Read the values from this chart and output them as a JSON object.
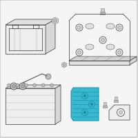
{
  "background_color": "#f5f5f5",
  "border_color": "#cccccc",
  "line_color": "#444444",
  "line_color2": "#666666",
  "highlight_color": "#3ab8d0",
  "highlight_edge": "#1a8aaa",
  "screw_color": "#777777",
  "part_face": "#eeeeee",
  "part_face2": "#e0e0e0",
  "fig_size": [
    2.0,
    2.0
  ],
  "dpi": 100,
  "lw": 0.55
}
